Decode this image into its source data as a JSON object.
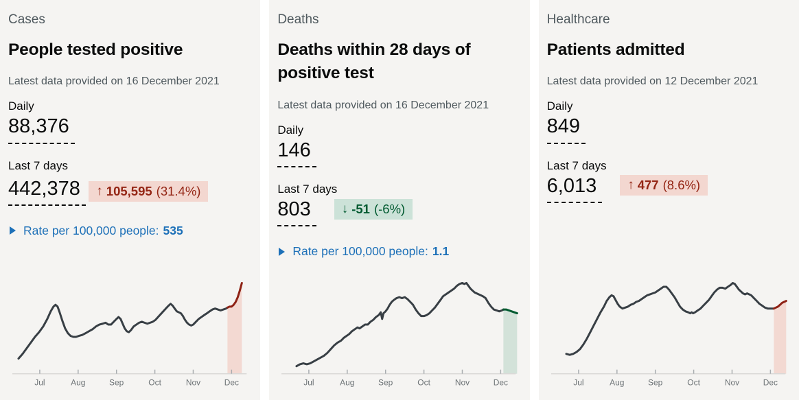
{
  "colors": {
    "card_bg": "#f5f4f2",
    "text": "#0b0c0c",
    "muted_text": "#505a5f",
    "link_blue": "#1d70b8",
    "bad_text": "#942514",
    "bad_bg": "#f3d7d0",
    "good_text": "#005a30",
    "good_bg": "#cce2d8",
    "spark_line": "#383f45",
    "axis": "#dad9d7",
    "tick": "#a9adb0",
    "month_label": "#6e7477"
  },
  "cards": [
    {
      "section": "Cases",
      "title": "People tested positive",
      "updated": "Latest data provided on 16 December 2021",
      "daily_label": "Daily",
      "daily_value": "88,376",
      "weekly_label": "Last 7 days",
      "weekly_value": "442,378",
      "change": {
        "tone": "bad",
        "arrow": "↑",
        "value": "105,595",
        "percent": "(31.4%)"
      },
      "rate": {
        "label": "Rate per 100,000 people:",
        "value": "535"
      }
    },
    {
      "section": "Deaths",
      "title": "Deaths within 28 days of positive test",
      "updated": "Latest data provided on 16 December 2021",
      "daily_label": "Daily",
      "daily_value": "146",
      "weekly_label": "Last 7 days",
      "weekly_value": "803",
      "change": {
        "tone": "good",
        "arrow": "↓",
        "value": "-51",
        "percent": "(-6%)"
      },
      "rate": {
        "label": "Rate per 100,000 people:",
        "value": "1.1"
      }
    },
    {
      "section": "Healthcare",
      "title": "Patients admitted",
      "updated": "Latest data provided on 12 December 2021",
      "daily_label": "Daily",
      "daily_value": "849",
      "weekly_label": "Last 7 days",
      "weekly_value": "6,013",
      "change": {
        "tone": "bad",
        "arrow": "↑",
        "value": "477",
        "percent": "(8.6%)"
      }
    }
  ],
  "chart_data": [
    {
      "type": "line",
      "title": "People tested positive, daily trend late Jun – mid Dec 2021",
      "months": [
        "Jul",
        "Aug",
        "Sep",
        "Oct",
        "Nov",
        "Dec"
      ],
      "y_axis": "unlabelled sparkline, values are relative height (0-100)",
      "line_color": "#383f45",
      "highlight_line_color": "#8e2215",
      "highlight_fill_color": "#f3d9d2",
      "line": [
        [
          15,
          16
        ],
        [
          21,
          21
        ],
        [
          27,
          27
        ],
        [
          33,
          33
        ],
        [
          39,
          39
        ],
        [
          45,
          44
        ],
        [
          51,
          50
        ],
        [
          57,
          58
        ],
        [
          62,
          66
        ],
        [
          66,
          71
        ],
        [
          69,
          73
        ],
        [
          72,
          71
        ],
        [
          75,
          65
        ],
        [
          79,
          56
        ],
        [
          83,
          48
        ],
        [
          87,
          43
        ],
        [
          91,
          40
        ],
        [
          95,
          39
        ],
        [
          99,
          39
        ],
        [
          103,
          40
        ],
        [
          108,
          41
        ],
        [
          113,
          43
        ],
        [
          118,
          45
        ],
        [
          123,
          47
        ],
        [
          128,
          50
        ],
        [
          133,
          52
        ],
        [
          138,
          53
        ],
        [
          142,
          54
        ],
        [
          146,
          52
        ],
        [
          150,
          52
        ],
        [
          154,
          55
        ],
        [
          158,
          58
        ],
        [
          161,
          60
        ],
        [
          164,
          58
        ],
        [
          167,
          53
        ],
        [
          170,
          48
        ],
        [
          173,
          45
        ],
        [
          176,
          44
        ],
        [
          179,
          46
        ],
        [
          183,
          50
        ],
        [
          187,
          52
        ],
        [
          191,
          54
        ],
        [
          195,
          55
        ],
        [
          199,
          54
        ],
        [
          203,
          53
        ],
        [
          207,
          54
        ],
        [
          211,
          55
        ],
        [
          215,
          57
        ],
        [
          220,
          61
        ],
        [
          225,
          65
        ],
        [
          230,
          69
        ],
        [
          234,
          72
        ],
        [
          237,
          74
        ],
        [
          240,
          72
        ],
        [
          243,
          69
        ],
        [
          246,
          66
        ],
        [
          249,
          65
        ],
        [
          252,
          64
        ],
        [
          255,
          61
        ],
        [
          258,
          57
        ],
        [
          261,
          54
        ],
        [
          264,
          52
        ],
        [
          267,
          51
        ],
        [
          270,
          52
        ],
        [
          274,
          55
        ],
        [
          278,
          58
        ],
        [
          282,
          60
        ],
        [
          286,
          62
        ],
        [
          290,
          64
        ],
        [
          294,
          66
        ],
        [
          298,
          68
        ],
        [
          302,
          69
        ],
        [
          306,
          68
        ],
        [
          310,
          67
        ],
        [
          314,
          68
        ],
        [
          318,
          69
        ],
        [
          320,
          70
        ]
      ],
      "highlight_line": [
        [
          320,
          70
        ],
        [
          323,
          71
        ],
        [
          326,
          71
        ],
        [
          329,
          73
        ],
        [
          332,
          76
        ],
        [
          335,
          81
        ],
        [
          338,
          88
        ],
        [
          341,
          96
        ]
      ]
    },
    {
      "type": "line",
      "title": "Deaths within 28 days of positive test, daily trend late Jun – mid Dec 2021",
      "months": [
        "Jul",
        "Aug",
        "Sep",
        "Oct",
        "Nov",
        "Dec"
      ],
      "y_axis": "unlabelled sparkline, values are relative height (0-100)",
      "line_color": "#383f45",
      "highlight_line_color": "#005a30",
      "highlight_fill_color": "#d3e2d9",
      "line": [
        [
          28,
          8
        ],
        [
          33,
          10
        ],
        [
          38,
          11
        ],
        [
          43,
          10
        ],
        [
          48,
          11
        ],
        [
          53,
          13
        ],
        [
          58,
          15
        ],
        [
          63,
          17
        ],
        [
          68,
          19
        ],
        [
          73,
          22
        ],
        [
          78,
          26
        ],
        [
          83,
          30
        ],
        [
          88,
          33
        ],
        [
          93,
          35
        ],
        [
          97,
          38
        ],
        [
          101,
          40
        ],
        [
          105,
          42
        ],
        [
          109,
          45
        ],
        [
          113,
          47
        ],
        [
          117,
          49
        ],
        [
          120,
          48
        ],
        [
          124,
          50
        ],
        [
          128,
          52
        ],
        [
          132,
          52
        ],
        [
          136,
          55
        ],
        [
          140,
          57
        ],
        [
          144,
          60
        ],
        [
          148,
          62
        ],
        [
          151,
          65
        ],
        [
          153,
          58
        ],
        [
          155,
          64
        ],
        [
          158,
          66
        ],
        [
          161,
          69
        ],
        [
          164,
          73
        ],
        [
          167,
          76
        ],
        [
          170,
          78
        ],
        [
          174,
          80
        ],
        [
          178,
          81
        ],
        [
          182,
          80
        ],
        [
          186,
          81
        ],
        [
          190,
          79
        ],
        [
          194,
          76
        ],
        [
          198,
          73
        ],
        [
          202,
          68
        ],
        [
          206,
          64
        ],
        [
          210,
          61
        ],
        [
          214,
          61
        ],
        [
          218,
          62
        ],
        [
          222,
          64
        ],
        [
          226,
          67
        ],
        [
          230,
          70
        ],
        [
          234,
          74
        ],
        [
          238,
          78
        ],
        [
          242,
          82
        ],
        [
          246,
          84
        ],
        [
          250,
          86
        ],
        [
          254,
          88
        ],
        [
          258,
          90
        ],
        [
          262,
          93
        ],
        [
          266,
          95
        ],
        [
          270,
          96
        ],
        [
          273,
          95
        ],
        [
          276,
          96
        ],
        [
          279,
          93
        ],
        [
          282,
          90
        ],
        [
          285,
          88
        ],
        [
          288,
          86
        ],
        [
          291,
          85
        ],
        [
          294,
          84
        ],
        [
          297,
          83
        ],
        [
          300,
          82
        ],
        [
          304,
          80
        ],
        [
          308,
          75
        ],
        [
          312,
          71
        ],
        [
          316,
          68
        ],
        [
          320,
          67
        ],
        [
          324,
          66
        ],
        [
          328,
          67
        ],
        [
          330,
          68
        ]
      ],
      "highlight_line": [
        [
          330,
          68
        ],
        [
          334,
          68
        ],
        [
          338,
          67
        ],
        [
          342,
          66
        ],
        [
          346,
          65
        ],
        [
          350,
          64
        ]
      ]
    },
    {
      "type": "line",
      "title": "Patients admitted, daily trend late Jun – mid Dec 2021",
      "months": [
        "Jul",
        "Aug",
        "Sep",
        "Oct",
        "Nov",
        "Dec"
      ],
      "y_axis": "unlabelled sparkline, values are relative height (0-100)",
      "line_color": "#383f45",
      "highlight_line_color": "#8e2215",
      "highlight_fill_color": "#f3d9d2",
      "line": [
        [
          28,
          21
        ],
        [
          33,
          20
        ],
        [
          38,
          21
        ],
        [
          43,
          23
        ],
        [
          48,
          26
        ],
        [
          53,
          31
        ],
        [
          58,
          37
        ],
        [
          63,
          44
        ],
        [
          68,
          51
        ],
        [
          73,
          58
        ],
        [
          78,
          65
        ],
        [
          83,
          71
        ],
        [
          87,
          77
        ],
        [
          91,
          81
        ],
        [
          94,
          83
        ],
        [
          97,
          82
        ],
        [
          100,
          78
        ],
        [
          103,
          74
        ],
        [
          106,
          71
        ],
        [
          110,
          69
        ],
        [
          114,
          70
        ],
        [
          118,
          71
        ],
        [
          122,
          73
        ],
        [
          126,
          74
        ],
        [
          130,
          76
        ],
        [
          134,
          77
        ],
        [
          138,
          79
        ],
        [
          142,
          81
        ],
        [
          146,
          83
        ],
        [
          150,
          84
        ],
        [
          154,
          85
        ],
        [
          158,
          86
        ],
        [
          162,
          88
        ],
        [
          166,
          90
        ],
        [
          170,
          92
        ],
        [
          174,
          92
        ],
        [
          178,
          89
        ],
        [
          182,
          85
        ],
        [
          186,
          81
        ],
        [
          190,
          76
        ],
        [
          194,
          71
        ],
        [
          198,
          68
        ],
        [
          202,
          66
        ],
        [
          206,
          65
        ],
        [
          209,
          64
        ],
        [
          211,
          65
        ],
        [
          213,
          64
        ],
        [
          216,
          65
        ],
        [
          220,
          67
        ],
        [
          224,
          69
        ],
        [
          228,
          72
        ],
        [
          232,
          75
        ],
        [
          236,
          78
        ],
        [
          240,
          82
        ],
        [
          244,
          86
        ],
        [
          248,
          89
        ],
        [
          252,
          91
        ],
        [
          256,
          91
        ],
        [
          260,
          90
        ],
        [
          264,
          92
        ],
        [
          268,
          94
        ],
        [
          271,
          96
        ],
        [
          274,
          95
        ],
        [
          277,
          92
        ],
        [
          280,
          89
        ],
        [
          283,
          87
        ],
        [
          286,
          85
        ],
        [
          289,
          84
        ],
        [
          292,
          85
        ],
        [
          295,
          84
        ],
        [
          298,
          83
        ],
        [
          302,
          80
        ],
        [
          306,
          77
        ],
        [
          310,
          74
        ],
        [
          314,
          72
        ],
        [
          318,
          70
        ],
        [
          322,
          69
        ],
        [
          326,
          69
        ],
        [
          329,
          69
        ],
        [
          331,
          69
        ]
      ],
      "highlight_line": [
        [
          331,
          69
        ],
        [
          334,
          70
        ],
        [
          337,
          71
        ],
        [
          340,
          73
        ],
        [
          343,
          75
        ],
        [
          346,
          76
        ],
        [
          349,
          77
        ]
      ]
    }
  ]
}
